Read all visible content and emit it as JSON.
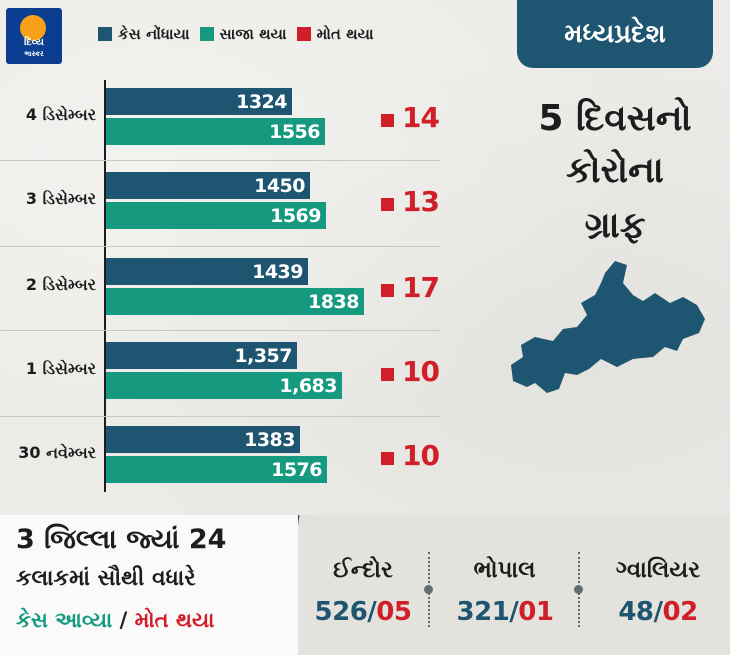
{
  "logo": {
    "line1": "દિવ્ય",
    "line2": "ભાસ્કર"
  },
  "legend": [
    {
      "label": "કેસ નોંધાયા",
      "color": "#1e5570"
    },
    {
      "label": "સાજા થયા",
      "color": "#159a80"
    },
    {
      "label": "મોત થયા",
      "color": "#d11f2a"
    }
  ],
  "state": "મધ્યપ્રદેશ",
  "title_lines": [
    "5 દિવસનો",
    "કોરોના",
    "ગ્રાફ"
  ],
  "chart_data": {
    "type": "bar",
    "categories": [
      "4 ડિસેમ્બર",
      "3 ડિસેમ્બર",
      "2 ડિસેમ્બર",
      "1 ડિસેમ્બર",
      "30 નવેમ્બર"
    ],
    "series": [
      {
        "name": "કેસ નોંધાયા",
        "color": "#1e5570",
        "values": [
          1324,
          1450,
          1439,
          1357,
          1383
        ],
        "labels": [
          "1324",
          "1450",
          "1439",
          "1,357",
          "1383"
        ]
      },
      {
        "name": "સાજા થયા",
        "color": "#159a80",
        "values": [
          1556,
          1569,
          1838,
          1683,
          1576
        ],
        "labels": [
          "1556",
          "1569",
          "1838",
          "1,683",
          "1576"
        ]
      },
      {
        "name": "મોત થયા",
        "color": "#d11f2a",
        "values": [
          14,
          13,
          17,
          10,
          10
        ],
        "labels": [
          "14",
          "13",
          "17",
          "10",
          "10"
        ]
      }
    ]
  },
  "bottom": {
    "line1": "3 જિલ્લા જ્યાં 24",
    "line2": "કલાકમાં સૌથી વધારે",
    "line3_cases": "કેસ આવ્યા",
    "line3_sep": "/",
    "line3_deaths": "મોત થયા",
    "cities": [
      {
        "name": "ઈન્દોર",
        "cases": "526",
        "deaths": "05"
      },
      {
        "name": "ભોપાલ",
        "cases": "321",
        "deaths": "01"
      },
      {
        "name": "ગ્વાલિયર",
        "cases": "48",
        "deaths": "02"
      }
    ]
  }
}
